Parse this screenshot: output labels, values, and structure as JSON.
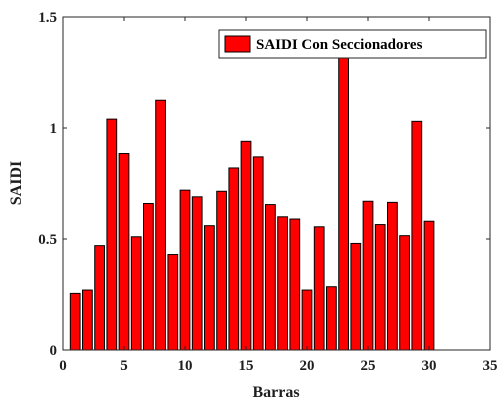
{
  "chart_data": {
    "type": "bar",
    "x": [
      1,
      2,
      3,
      4,
      5,
      6,
      7,
      8,
      9,
      10,
      11,
      12,
      13,
      14,
      15,
      16,
      17,
      18,
      19,
      20,
      21,
      22,
      23,
      24,
      25,
      26,
      27,
      28,
      29,
      30
    ],
    "series": [
      {
        "name": "SAIDI Con Seccionadores",
        "values": [
          0.255,
          0.27,
          0.47,
          1.04,
          0.885,
          0.51,
          0.66,
          1.125,
          0.43,
          0.72,
          0.69,
          0.56,
          0.715,
          0.82,
          0.94,
          0.87,
          0.655,
          0.6,
          0.59,
          0.27,
          0.555,
          0.285,
          1.33,
          0.48,
          0.67,
          0.565,
          0.665,
          0.515,
          1.03,
          0.58
        ],
        "color": "#ff0000"
      }
    ],
    "xlabel": "Barras",
    "ylabel": "SAIDI",
    "xlim": [
      0,
      35
    ],
    "ylim": [
      0,
      1.5
    ],
    "xticks": [
      "0",
      "5",
      "10",
      "15",
      "20",
      "25",
      "30",
      "35"
    ],
    "yticks": [
      "0",
      "0.5",
      "1",
      "1.5"
    ],
    "grid": false,
    "legend_position": "top-right"
  }
}
